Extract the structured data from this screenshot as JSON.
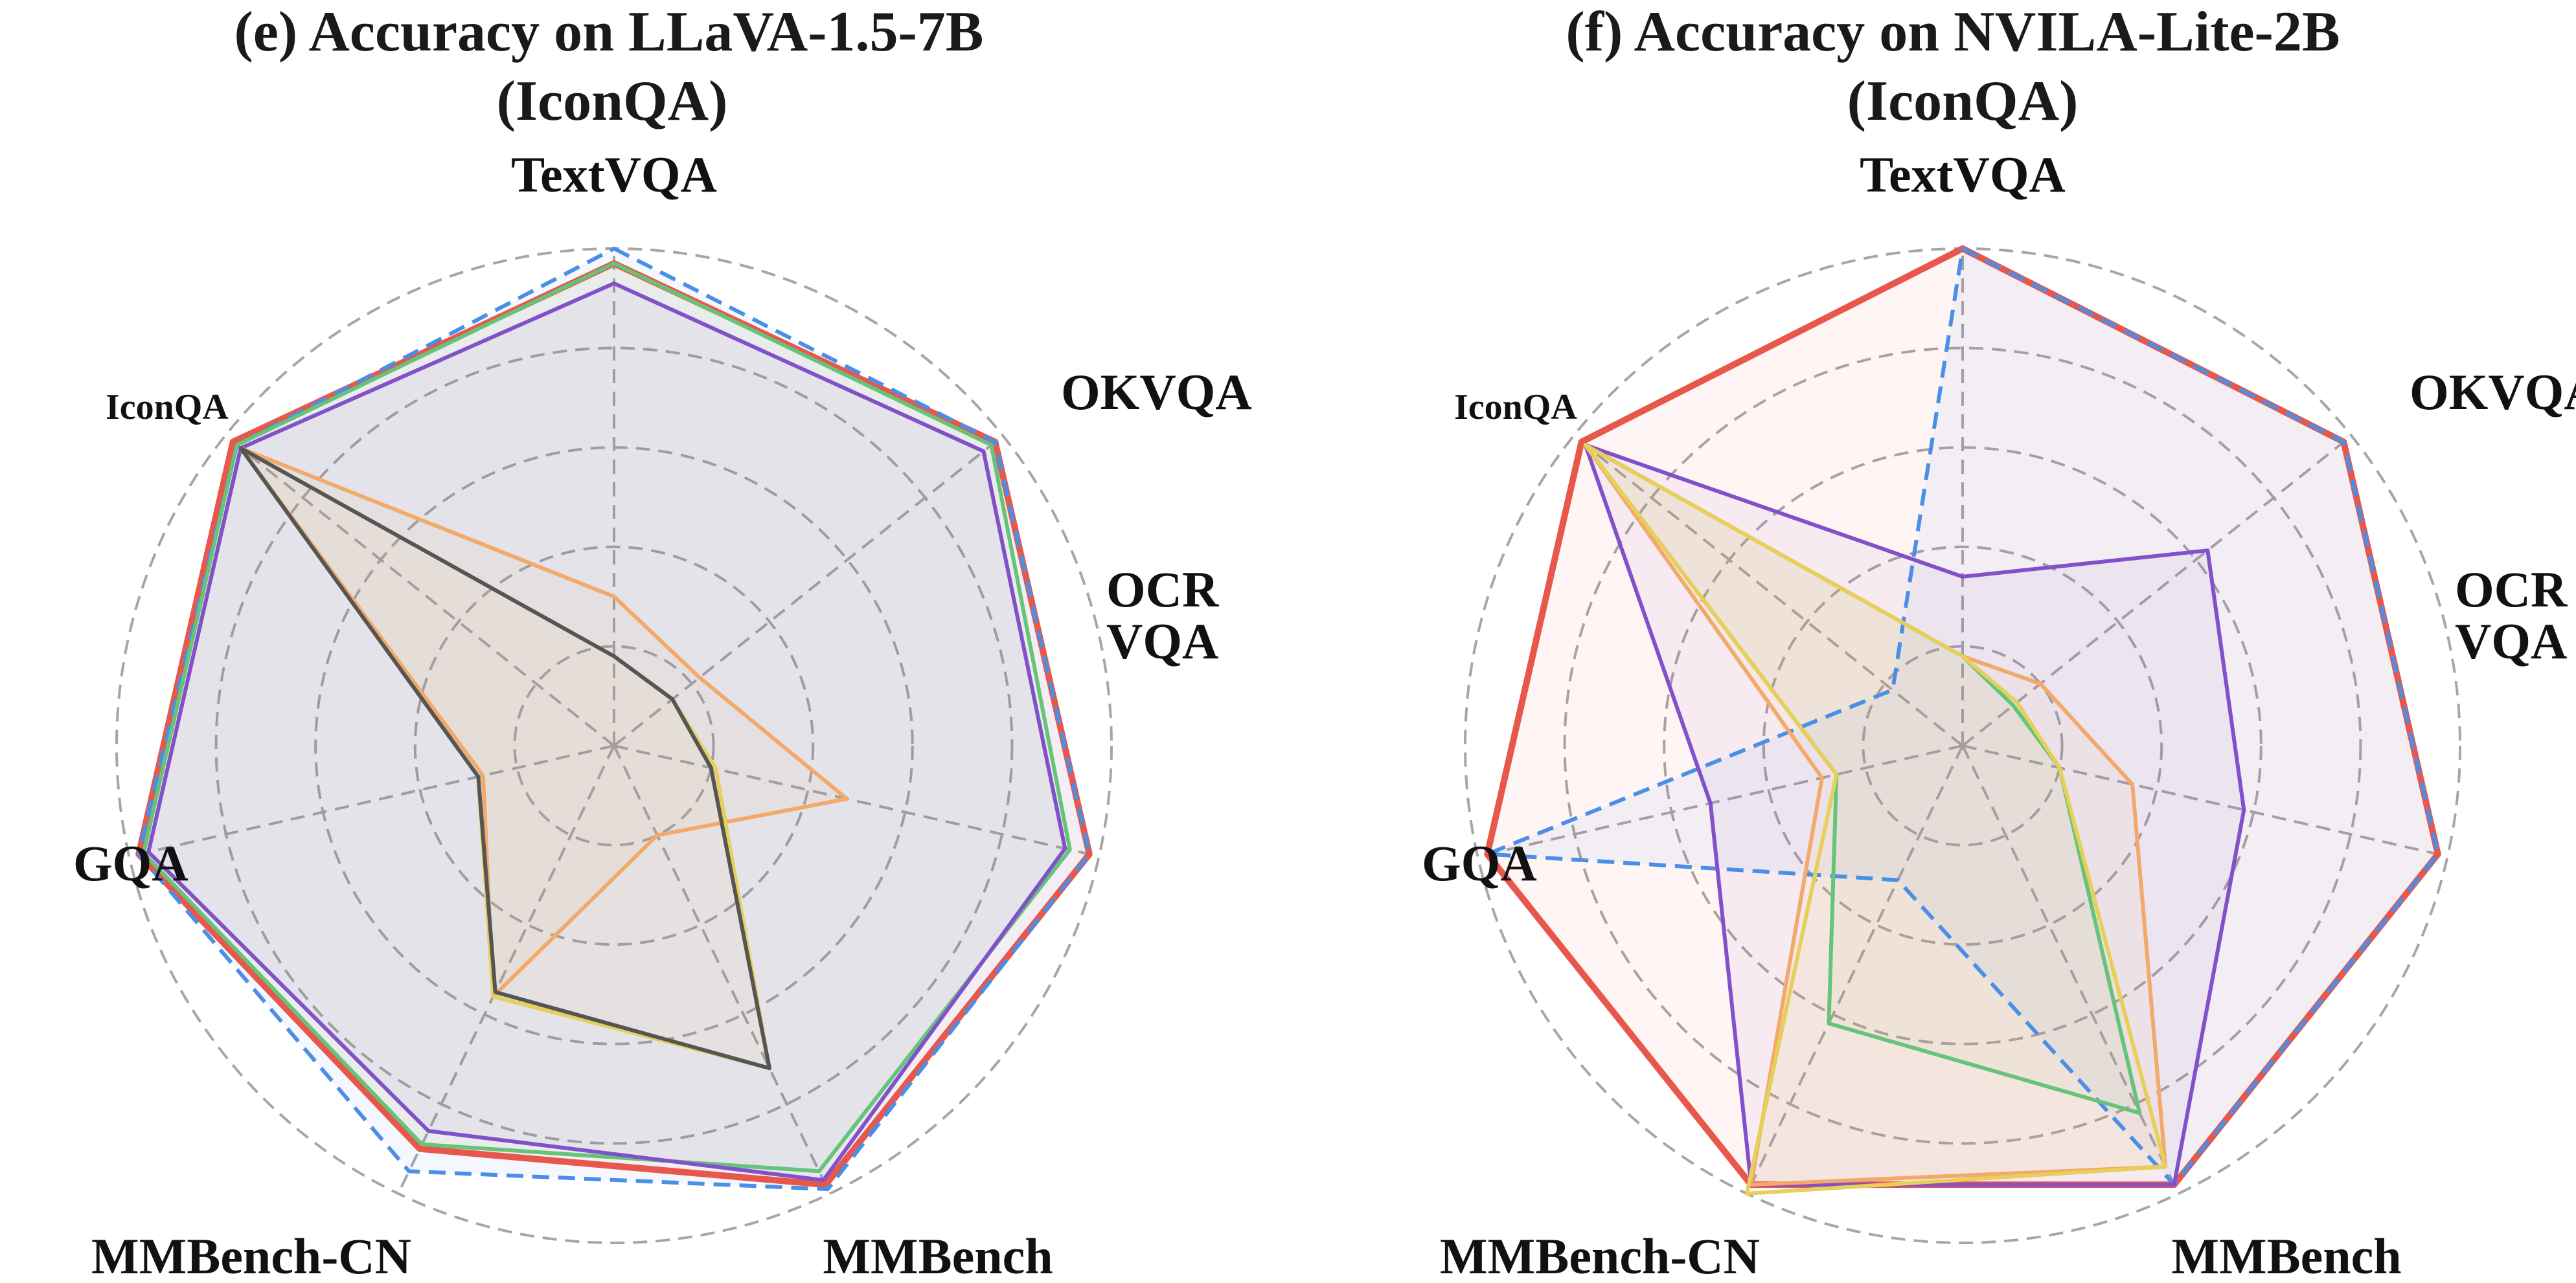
{
  "colors": {
    "grid": "#a6a6a6",
    "highlight_label": "#e8574b"
  },
  "chart_data": [
    {
      "type": "radar",
      "panel": "(e)",
      "title_lines": [
        "(e)  Accuracy on LLaVA-1.5-7B",
        "(IconQA)"
      ],
      "axes": [
        "TextVQA",
        "OKVQA",
        "OCR VQA",
        "MMBench",
        "MMBench-CN",
        "GQA",
        "IconQA"
      ],
      "highlight_axis": "IconQA",
      "rmax": 1.0,
      "rings": [
        0.2,
        0.4,
        0.6,
        0.8,
        1.0
      ],
      "grid": true,
      "series": [
        {
          "color": "#e8574b",
          "dashed": false,
          "values": [
            0.97,
            0.98,
            0.98,
            0.98,
            0.9,
            0.98,
            0.98
          ]
        },
        {
          "color": "#4a8fe7",
          "dashed": true,
          "values": [
            1.0,
            0.98,
            0.98,
            0.99,
            0.95,
            0.98,
            0.97
          ]
        },
        {
          "color": "#66c47a",
          "dashed": false,
          "values": [
            0.97,
            0.97,
            0.94,
            0.95,
            0.89,
            0.97,
            0.97
          ]
        },
        {
          "color": "#8251c9",
          "dashed": false,
          "values": [
            0.93,
            0.95,
            0.93,
            0.97,
            0.86,
            0.96,
            0.96
          ]
        },
        {
          "color": "#f2a96b",
          "dashed": false,
          "values": [
            0.3,
            0.22,
            0.48,
            0.2,
            0.56,
            0.27,
            0.96
          ]
        },
        {
          "color": "#e6cf5a",
          "dashed": false,
          "values": [
            0.18,
            0.15,
            0.21,
            0.72,
            0.56,
            0.28,
            0.96
          ]
        },
        {
          "color": "#555555",
          "dashed": false,
          "values": [
            0.18,
            0.15,
            0.2,
            0.72,
            0.55,
            0.28,
            0.96
          ],
          "width": 1.5
        }
      ]
    },
    {
      "type": "radar",
      "panel": "(f)",
      "title_lines": [
        "(f)  Accuracy on NVILA-Lite-2B",
        "(IconQA)"
      ],
      "axes": [
        "TextVQA",
        "OKVQA",
        "OCR VQA",
        "MMBench",
        "MMBench-CN",
        "GQA",
        "IconQA"
      ],
      "highlight_axis": "IconQA",
      "rmax": 1.0,
      "rings": [
        0.2,
        0.4,
        0.6,
        0.8,
        1.0
      ],
      "grid": true,
      "series": [
        {
          "color": "#e8574b",
          "dashed": false,
          "values": [
            1.0,
            0.98,
            0.98,
            0.98,
            0.98,
            0.98,
            0.98
          ]
        },
        {
          "color": "#4a8fe7",
          "dashed": true,
          "values": [
            1.0,
            0.98,
            0.98,
            0.98,
            0.3,
            0.98,
            0.18
          ]
        },
        {
          "color": "#66c47a",
          "dashed": false,
          "values": [
            0.18,
            0.13,
            0.2,
            0.82,
            0.62,
            0.26,
            0.97
          ]
        },
        {
          "color": "#8251c9",
          "dashed": false,
          "values": [
            0.34,
            0.63,
            0.58,
            0.98,
            0.98,
            0.52,
            0.97
          ]
        },
        {
          "color": "#f2a96b",
          "dashed": false,
          "values": [
            0.18,
            0.2,
            0.35,
            0.94,
            0.98,
            0.29,
            0.97
          ]
        },
        {
          "color": "#e6cf5a",
          "dashed": false,
          "values": [
            0.18,
            0.14,
            0.2,
            0.94,
            1.0,
            0.26,
            0.97
          ]
        }
      ]
    }
  ]
}
